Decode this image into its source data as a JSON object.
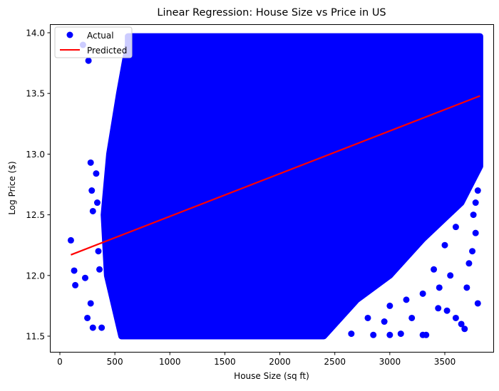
{
  "chart_data": {
    "type": "scatter",
    "title": "Linear Regression: House Size vs Price in US",
    "xlabel": "House Size (sq ft)",
    "ylabel": "Log Price ($)",
    "xlim": [
      -100,
      4000
    ],
    "ylim": [
      11.4,
      14.07
    ],
    "xticks": [
      0,
      500,
      1000,
      1500,
      2000,
      2500,
      3000,
      3500
    ],
    "yticks": [
      11.5,
      12.0,
      12.5,
      13.0,
      13.5,
      14.0
    ],
    "ytick_labels": [
      "11.5",
      "12.0",
      "12.5",
      "13.0",
      "13.5",
      "14.0"
    ],
    "grid": false,
    "legend": {
      "placement": "top-left",
      "entries": [
        "Actual",
        "Predicted"
      ]
    },
    "colors": {
      "actual": "#0000ff",
      "predicted": "#ff0000"
    },
    "series": [
      {
        "name": "Actual",
        "kind": "scatter",
        "dense_region": [
          [
            620,
            13.97
          ],
          [
            3820,
            13.97
          ],
          [
            3820,
            12.9
          ],
          [
            3650,
            12.6
          ],
          [
            3300,
            12.3
          ],
          [
            3000,
            12.0
          ],
          [
            2700,
            11.8
          ],
          [
            2400,
            11.5
          ],
          [
            560,
            11.5
          ],
          [
            430,
            12.0
          ],
          [
            400,
            12.5
          ],
          [
            450,
            13.0
          ],
          [
            540,
            13.5
          ],
          [
            620,
            13.9
          ]
        ],
        "points": [
          [
            100,
            12.29
          ],
          [
            130,
            12.04
          ],
          [
            140,
            11.92
          ],
          [
            210,
            13.9
          ],
          [
            260,
            13.77
          ],
          [
            230,
            11.98
          ],
          [
            250,
            11.65
          ],
          [
            300,
            11.57
          ],
          [
            280,
            11.77
          ],
          [
            290,
            12.7
          ],
          [
            300,
            12.53
          ],
          [
            280,
            12.93
          ],
          [
            330,
            12.84
          ],
          [
            340,
            12.6
          ],
          [
            380,
            11.57
          ],
          [
            350,
            12.2
          ],
          [
            360,
            12.05
          ],
          [
            3680,
            11.56
          ],
          [
            3520,
            11.71
          ],
          [
            3440,
            11.73
          ],
          [
            3330,
            11.51
          ],
          [
            3300,
            11.51
          ],
          [
            3800,
            11.77
          ],
          [
            3780,
            12.35
          ],
          [
            3750,
            12.2
          ],
          [
            3700,
            11.9
          ],
          [
            3600,
            11.65
          ],
          [
            3550,
            12.0
          ],
          [
            3450,
            11.9
          ],
          [
            3200,
            11.65
          ],
          [
            3100,
            11.52
          ],
          [
            3000,
            11.51
          ],
          [
            2850,
            11.51
          ],
          [
            2650,
            11.52
          ],
          [
            3650,
            11.6
          ],
          [
            3760,
            12.5
          ],
          [
            3720,
            12.1
          ],
          [
            3300,
            11.85
          ],
          [
            3000,
            11.75
          ],
          [
            2800,
            11.65
          ],
          [
            3500,
            12.25
          ],
          [
            3150,
            11.8
          ],
          [
            2950,
            11.62
          ],
          [
            3400,
            12.05
          ],
          [
            3600,
            12.4
          ],
          [
            3800,
            12.7
          ],
          [
            3780,
            12.6
          ]
        ]
      },
      {
        "name": "Predicted",
        "kind": "line",
        "x": [
          100,
          3820
        ],
        "y": [
          12.17,
          13.48
        ]
      }
    ]
  }
}
